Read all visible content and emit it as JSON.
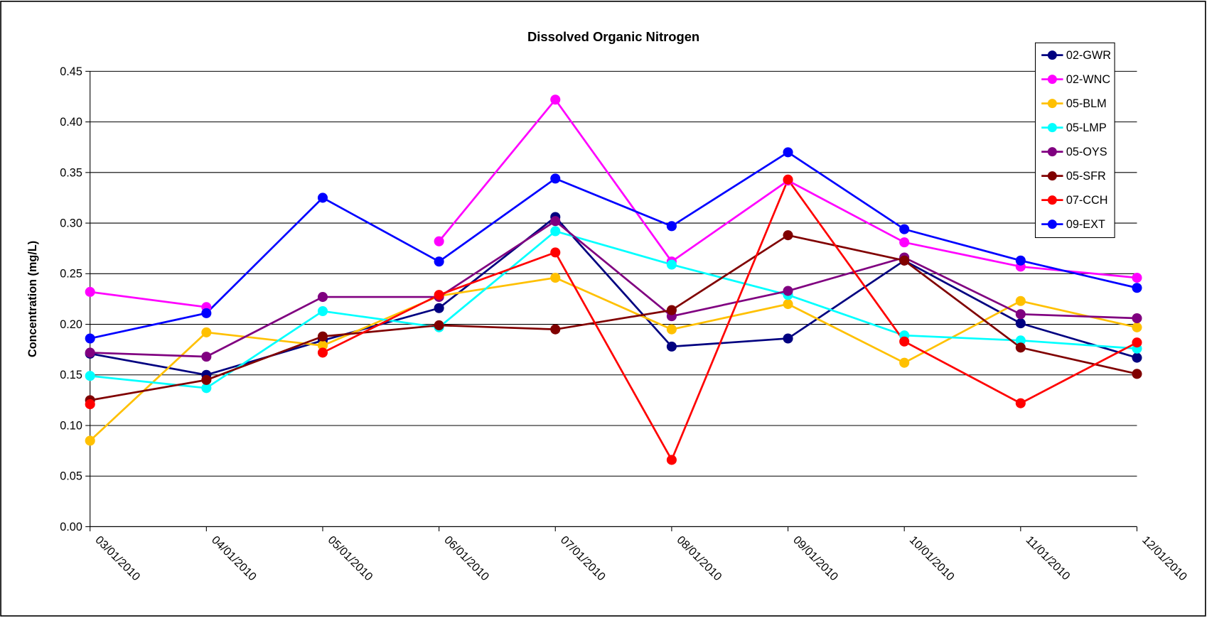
{
  "chart_data": {
    "type": "line",
    "title": "Dissolved Organic Nitrogen",
    "y_label": "Concentration (mg/L)",
    "categories": [
      "03/01/2010",
      "04/01/2010",
      "05/01/2010",
      "06/01/2010",
      "07/01/2010",
      "08/01/2010",
      "09/01/2010",
      "10/01/2010",
      "11/01/2010",
      "12/01/2010"
    ],
    "ylim": [
      0,
      0.45
    ],
    "yticks": [
      {
        "value": 0,
        "label": "0.00"
      },
      0.05,
      {
        "value": 0.1,
        "label": "0.10"
      },
      0.15,
      {
        "value": 0.2,
        "label": "0.20"
      },
      0.25,
      {
        "value": 0.3,
        "label": "0.30"
      },
      0.35,
      {
        "value": 0.4,
        "label": "0.40"
      },
      0.45
    ],
    "grid": true,
    "legend": "upper right",
    "series": [
      {
        "name": "02-GWR",
        "color": "#000080",
        "values": [
          0.171,
          0.15,
          0.184,
          0.216,
          0.306,
          0.178,
          0.186,
          0.263,
          0.201,
          0.167
        ]
      },
      {
        "name": "02-WNC",
        "color": "#ff00ff",
        "values": [
          0.232,
          0.217,
          null,
          0.282,
          0.422,
          0.262,
          0.342,
          0.281,
          0.257,
          0.246
        ]
      },
      {
        "name": "05-BLM",
        "color": "#ffc000",
        "values": [
          0.085,
          0.192,
          0.179,
          0.228,
          0.246,
          0.195,
          0.22,
          0.162,
          0.223,
          0.197
        ]
      },
      {
        "name": "05-LMP",
        "color": "#00ffff",
        "values": [
          0.149,
          0.137,
          0.213,
          0.197,
          0.292,
          0.259,
          0.229,
          0.189,
          0.184,
          0.176
        ]
      },
      {
        "name": "05-OYS",
        "color": "#800080",
        "values": [
          0.172,
          0.168,
          0.227,
          0.227,
          0.302,
          0.208,
          0.233,
          0.266,
          0.21,
          0.206
        ]
      },
      {
        "name": "05-SFR",
        "color": "#800000",
        "values": [
          0.125,
          0.145,
          0.188,
          0.199,
          0.195,
          0.214,
          0.288,
          0.263,
          0.177,
          0.151
        ]
      },
      {
        "name": "07-CCH",
        "color": "#ff0000",
        "values": [
          0.121,
          null,
          0.172,
          0.229,
          0.271,
          0.066,
          0.343,
          0.183,
          0.122,
          0.182
        ]
      },
      {
        "name": "09-EXT",
        "color": "#0000ff",
        "values": [
          0.186,
          0.211,
          0.325,
          0.262,
          0.344,
          0.297,
          0.37,
          0.294,
          0.263,
          0.236
        ]
      }
    ]
  }
}
